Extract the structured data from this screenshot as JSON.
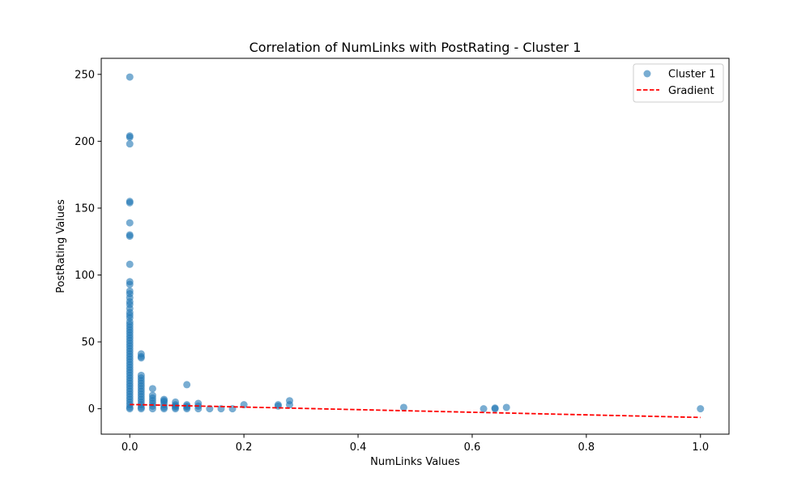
{
  "chart_data": {
    "type": "scatter",
    "title": "Correlation of NumLinks with PostRating - Cluster 1",
    "xlabel": "NumLinks Values",
    "ylabel": "PostRating Values",
    "xlim": [
      -0.05,
      1.05
    ],
    "ylim": [
      -19,
      262
    ],
    "xticks": [
      0.0,
      0.2,
      0.4,
      0.6,
      0.8,
      1.0
    ],
    "xtick_labels": [
      "0.0",
      "0.2",
      "0.4",
      "0.6",
      "0.8",
      "1.0"
    ],
    "yticks": [
      0,
      50,
      100,
      150,
      200,
      250
    ],
    "ytick_labels": [
      "0",
      "50",
      "100",
      "150",
      "200",
      "250"
    ],
    "grid": false,
    "legend_position": "top-right",
    "series": [
      {
        "name": "Cluster 1",
        "kind": "scatter",
        "color": "#1f77b4",
        "points": [
          [
            0,
            248
          ],
          [
            0,
            204
          ],
          [
            0,
            203
          ],
          [
            0,
            198
          ],
          [
            0,
            155
          ],
          [
            0,
            154
          ],
          [
            0,
            139
          ],
          [
            0,
            130
          ],
          [
            0,
            129
          ],
          [
            0,
            108
          ],
          [
            0,
            95
          ],
          [
            0,
            93
          ],
          [
            0,
            88
          ],
          [
            0,
            86
          ],
          [
            0,
            83
          ],
          [
            0,
            80
          ],
          [
            0,
            78
          ],
          [
            0,
            75
          ],
          [
            0,
            72
          ],
          [
            0,
            70
          ],
          [
            0,
            68
          ],
          [
            0,
            65
          ],
          [
            0,
            63
          ],
          [
            0,
            61
          ],
          [
            0,
            59
          ],
          [
            0,
            57
          ],
          [
            0,
            55
          ],
          [
            0,
            53
          ],
          [
            0,
            51
          ],
          [
            0,
            49
          ],
          [
            0,
            47
          ],
          [
            0,
            45
          ],
          [
            0,
            43
          ],
          [
            0,
            41
          ],
          [
            0,
            39
          ],
          [
            0,
            37
          ],
          [
            0,
            35
          ],
          [
            0,
            33
          ],
          [
            0,
            31
          ],
          [
            0,
            29
          ],
          [
            0,
            27
          ],
          [
            0,
            25
          ],
          [
            0,
            23
          ],
          [
            0,
            21
          ],
          [
            0,
            19
          ],
          [
            0,
            17
          ],
          [
            0,
            15
          ],
          [
            0,
            13
          ],
          [
            0,
            11
          ],
          [
            0,
            9
          ],
          [
            0,
            7
          ],
          [
            0,
            5
          ],
          [
            0,
            3
          ],
          [
            0,
            1
          ],
          [
            0,
            0
          ],
          [
            0.02,
            41
          ],
          [
            0.02,
            39
          ],
          [
            0.02,
            38
          ],
          [
            0.02,
            25
          ],
          [
            0.02,
            23
          ],
          [
            0.02,
            21
          ],
          [
            0.02,
            19
          ],
          [
            0.02,
            17
          ],
          [
            0.02,
            15
          ],
          [
            0.02,
            13
          ],
          [
            0.02,
            11
          ],
          [
            0.02,
            9
          ],
          [
            0.02,
            7
          ],
          [
            0.02,
            5
          ],
          [
            0.02,
            3
          ],
          [
            0.02,
            1
          ],
          [
            0.02,
            0
          ],
          [
            0.04,
            15
          ],
          [
            0.04,
            10
          ],
          [
            0.04,
            8
          ],
          [
            0.04,
            6
          ],
          [
            0.04,
            4
          ],
          [
            0.04,
            2
          ],
          [
            0.04,
            0
          ],
          [
            0.06,
            7
          ],
          [
            0.06,
            6
          ],
          [
            0.06,
            5
          ],
          [
            0.06,
            3
          ],
          [
            0.06,
            1
          ],
          [
            0.06,
            0
          ],
          [
            0.08,
            5
          ],
          [
            0.08,
            3
          ],
          [
            0.08,
            2
          ],
          [
            0.08,
            1
          ],
          [
            0.08,
            0
          ],
          [
            0.1,
            18
          ],
          [
            0.1,
            3
          ],
          [
            0.1,
            2
          ],
          [
            0.1,
            1
          ],
          [
            0.1,
            0
          ],
          [
            0.12,
            4
          ],
          [
            0.12,
            2
          ],
          [
            0.12,
            0
          ],
          [
            0.14,
            0
          ],
          [
            0.16,
            0
          ],
          [
            0.18,
            0
          ],
          [
            0.2,
            3
          ],
          [
            0.26,
            3
          ],
          [
            0.26,
            2
          ],
          [
            0.28,
            6
          ],
          [
            0.28,
            3
          ],
          [
            0.48,
            1
          ],
          [
            0.62,
            0
          ],
          [
            0.64,
            0
          ],
          [
            0.64,
            0.5
          ],
          [
            0.66,
            1
          ],
          [
            1.0,
            0
          ]
        ]
      },
      {
        "name": "Gradient",
        "kind": "line",
        "color": "#ff0000",
        "x": [
          0,
          1.0
        ],
        "y": [
          3.2,
          -6.5
        ]
      }
    ]
  }
}
